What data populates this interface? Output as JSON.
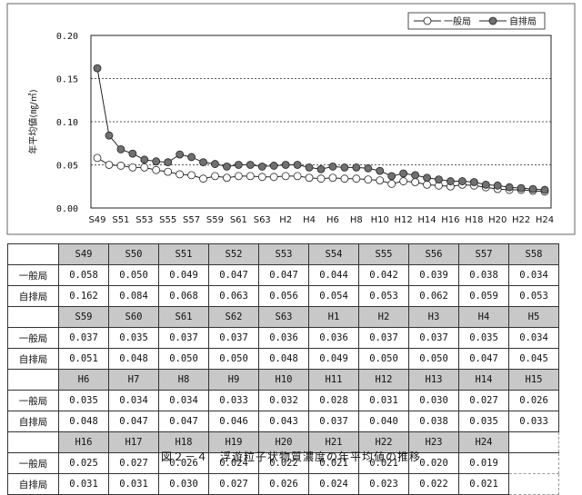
{
  "chart_data": {
    "type": "line",
    "ylabel": "年平均値(㎎/㎥)",
    "ylim": [
      0,
      0.2
    ],
    "yticks": [
      "0.00",
      "0.05",
      "0.10",
      "0.15",
      "0.20"
    ],
    "categories": [
      "S49",
      "S50",
      "S51",
      "S52",
      "S53",
      "S54",
      "S55",
      "S56",
      "S57",
      "S58",
      "S59",
      "S60",
      "S61",
      "S62",
      "S63",
      "H1",
      "H2",
      "H3",
      "H4",
      "H5",
      "H6",
      "H7",
      "H8",
      "H9",
      "H10",
      "H11",
      "H12",
      "H13",
      "H14",
      "H15",
      "H16",
      "H17",
      "H18",
      "H19",
      "H20",
      "H21",
      "H22",
      "H23",
      "H24"
    ],
    "xtick_labels": [
      "S49",
      "S51",
      "S53",
      "S55",
      "S57",
      "S59",
      "S61",
      "S63",
      "H2",
      "H4",
      "H6",
      "H8",
      "H10",
      "H12",
      "H14",
      "H16",
      "H18",
      "H20",
      "H22",
      "H24"
    ],
    "series": [
      {
        "name": "一般局",
        "color": "#ffffff",
        "values": [
          0.058,
          0.05,
          0.049,
          0.047,
          0.047,
          0.044,
          0.042,
          0.039,
          0.038,
          0.034,
          0.037,
          0.035,
          0.037,
          0.037,
          0.036,
          0.036,
          0.037,
          0.037,
          0.035,
          0.034,
          0.035,
          0.034,
          0.034,
          0.033,
          0.032,
          0.028,
          0.031,
          0.03,
          0.027,
          0.026,
          0.025,
          0.027,
          0.026,
          0.024,
          0.022,
          0.021,
          0.021,
          0.02,
          0.019
        ]
      },
      {
        "name": "自排局",
        "color": "#707070",
        "values": [
          0.162,
          0.084,
          0.068,
          0.063,
          0.056,
          0.054,
          0.053,
          0.062,
          0.059,
          0.053,
          0.051,
          0.048,
          0.05,
          0.05,
          0.048,
          0.049,
          0.05,
          0.05,
          0.047,
          0.045,
          0.048,
          0.047,
          0.047,
          0.046,
          0.043,
          0.037,
          0.04,
          0.038,
          0.035,
          0.033,
          0.031,
          0.031,
          0.03,
          0.027,
          0.026,
          0.024,
          0.023,
          0.022,
          0.021
        ]
      }
    ]
  },
  "table": {
    "row_labels": [
      "一般局",
      "自排局"
    ],
    "blocks": [
      {
        "years": [
          "S49",
          "S50",
          "S51",
          "S52",
          "S53",
          "S54",
          "S55",
          "S56",
          "S57",
          "S58"
        ],
        "ippan": [
          "0.058",
          "0.050",
          "0.049",
          "0.047",
          "0.047",
          "0.044",
          "0.042",
          "0.039",
          "0.038",
          "0.034"
        ],
        "jihai": [
          "0.162",
          "0.084",
          "0.068",
          "0.063",
          "0.056",
          "0.054",
          "0.053",
          "0.062",
          "0.059",
          "0.053"
        ]
      },
      {
        "years": [
          "S59",
          "S60",
          "S61",
          "S62",
          "S63",
          "H1",
          "H2",
          "H3",
          "H4",
          "H5"
        ],
        "ippan": [
          "0.037",
          "0.035",
          "0.037",
          "0.037",
          "0.036",
          "0.036",
          "0.037",
          "0.037",
          "0.035",
          "0.034"
        ],
        "jihai": [
          "0.051",
          "0.048",
          "0.050",
          "0.050",
          "0.048",
          "0.049",
          "0.050",
          "0.050",
          "0.047",
          "0.045"
        ]
      },
      {
        "years": [
          "H6",
          "H7",
          "H8",
          "H9",
          "H10",
          "H11",
          "H12",
          "H13",
          "H14",
          "H15"
        ],
        "ippan": [
          "0.035",
          "0.034",
          "0.034",
          "0.033",
          "0.032",
          "0.028",
          "0.031",
          "0.030",
          "0.027",
          "0.026"
        ],
        "jihai": [
          "0.048",
          "0.047",
          "0.047",
          "0.046",
          "0.043",
          "0.037",
          "0.040",
          "0.038",
          "0.035",
          "0.033"
        ]
      },
      {
        "years": [
          "H16",
          "H17",
          "H18",
          "H19",
          "H20",
          "H21",
          "H22",
          "H23",
          "H24"
        ],
        "ippan": [
          "0.025",
          "0.027",
          "0.026",
          "0.024",
          "0.022",
          "0.021",
          "0.021",
          "0.020",
          "0.019"
        ],
        "jihai": [
          "0.031",
          "0.031",
          "0.030",
          "0.027",
          "0.026",
          "0.024",
          "0.023",
          "0.022",
          "0.021"
        ]
      }
    ]
  },
  "caption": "図２－４　浮遊粒子状物質濃度の年平均値の推移"
}
